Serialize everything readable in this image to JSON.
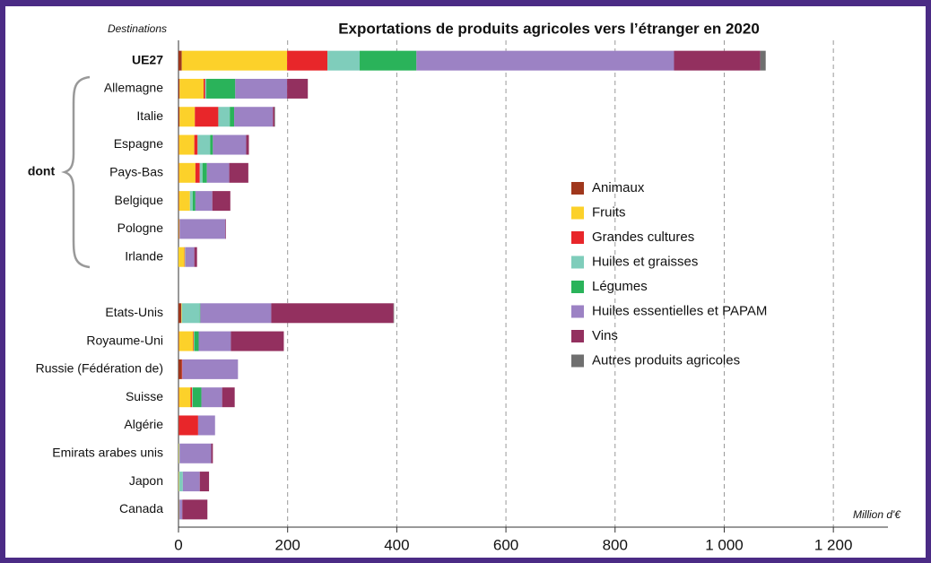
{
  "chart_data": {
    "type": "stacked_barh",
    "title": "Exportations de produits agricoles vers l’étranger en 2020",
    "y_axis_label": "Destinations",
    "x_axis_label": "Million d'€",
    "annotation": "dont",
    "categories": [
      "UE27",
      "Allemagne",
      "Italie",
      "Espagne",
      "Pays-Bas",
      "Belgique",
      "Pologne",
      "Irlande",
      null,
      "Etats-Unis",
      "Royaume-Uni",
      "Russie (Fédération de)",
      "Suisse",
      "Algérie",
      "Emirats arabes unis",
      "Japon",
      "Canada"
    ],
    "series": [
      {
        "name": "Animaux",
        "color": "#a0371c",
        "values": [
          6,
          2,
          2,
          1,
          1,
          1,
          1,
          0,
          null,
          5,
          1,
          6,
          1,
          1,
          0,
          0,
          1
        ]
      },
      {
        "name": "Fruits",
        "color": "#fcd12a",
        "values": [
          193,
          44,
          28,
          28,
          30,
          20,
          1,
          11,
          null,
          1,
          26,
          0,
          21,
          0,
          1,
          1,
          0
        ]
      },
      {
        "name": "Grandes cultures",
        "color": "#e8262a",
        "values": [
          74,
          3,
          43,
          6,
          8,
          0,
          0,
          1,
          null,
          0,
          1,
          1,
          3,
          35,
          0,
          0,
          0
        ]
      },
      {
        "name": "Huiles et graisses",
        "color": "#7fcdbb",
        "values": [
          59,
          2,
          21,
          23,
          5,
          5,
          0,
          1,
          null,
          33,
          1,
          0,
          1,
          0,
          1,
          7,
          1
        ]
      },
      {
        "name": "Légumes",
        "color": "#2ab35a",
        "values": [
          104,
          53,
          8,
          5,
          8,
          5,
          0,
          0,
          null,
          1,
          8,
          0,
          16,
          0,
          0,
          0,
          0
        ]
      },
      {
        "name": "Huiles essentielles et PAPAM",
        "color": "#9c82c4",
        "values": [
          472,
          95,
          71,
          61,
          41,
          31,
          84,
          16,
          null,
          130,
          59,
          102,
          38,
          31,
          58,
          31,
          5
        ]
      },
      {
        "name": "Vins",
        "color": "#93305f",
        "values": [
          158,
          38,
          3,
          5,
          35,
          33,
          1,
          5,
          null,
          224,
          97,
          0,
          23,
          0,
          3,
          17,
          46
        ]
      },
      {
        "name": "Autres produits agricoles",
        "color": "#6f6f6f",
        "values": [
          10,
          0,
          1,
          0,
          0,
          0,
          0,
          0,
          null,
          1,
          0,
          0,
          0,
          0,
          0,
          0,
          0
        ]
      }
    ],
    "xlim": [
      0,
      1300
    ],
    "xticks": [
      0,
      200,
      400,
      600,
      800,
      {
        "value": 1000,
        "label": "1 000"
      },
      {
        "value": 1200,
        "label": "1 200"
      }
    ],
    "grid": true,
    "legend": "right"
  }
}
